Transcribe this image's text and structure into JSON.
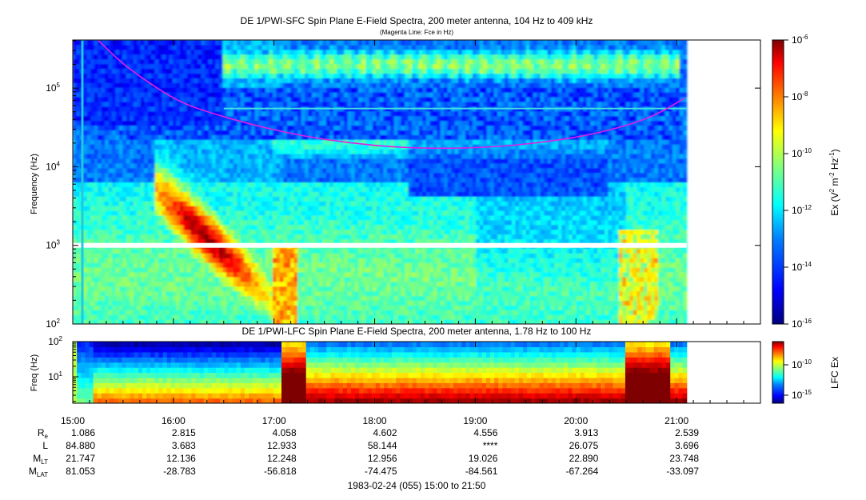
{
  "colors": {
    "fce_line": "#e020e0",
    "colormap": [
      "#00007f",
      "#0000ff",
      "#007fff",
      "#00ffff",
      "#7fff7f",
      "#ffff00",
      "#ff7f00",
      "#ff0000",
      "#7f0000"
    ]
  },
  "chart_data": [
    {
      "type": "heatmap",
      "title": "DE 1/PWI-SFC  Spin Plane E-Field Spectra, 200 meter antenna, 104 Hz to 409 kHz",
      "subtitle": "(Magenta Line: Fce in Hz)",
      "ylabel": "Frequency (Hz)",
      "yscale": "log",
      "ylim": [
        100,
        409000
      ],
      "yticks": [
        {
          "value": 100,
          "base": "10",
          "exp": "2"
        },
        {
          "value": 1000,
          "base": "10",
          "exp": "3"
        },
        {
          "value": 10000,
          "base": "10",
          "exp": "4"
        },
        {
          "value": 100000,
          "base": "10",
          "exp": "5"
        }
      ],
      "colorbar": {
        "label": "Ex (V",
        "label_parts": [
          "Ex (V",
          "2",
          " m",
          "-2",
          " Hz",
          "-1",
          ")"
        ],
        "scale": "log",
        "range": [
          1e-16,
          1e-06
        ],
        "ticks": [
          {
            "value": 1e-06,
            "base": "10",
            "exp": "-6"
          },
          {
            "value": 1e-08,
            "base": "10",
            "exp": "-8"
          },
          {
            "value": 1e-10,
            "base": "10",
            "exp": "-10"
          },
          {
            "value": 1e-12,
            "base": "10",
            "exp": "-12"
          },
          {
            "value": 1e-14,
            "base": "10",
            "exp": "-14"
          },
          {
            "value": 1e-16,
            "base": "10",
            "exp": "-16"
          }
        ]
      },
      "fce_line": {
        "name": "Fce in Hz",
        "points": [
          [
            "15:15",
            409000
          ],
          [
            "15:30",
            200000
          ],
          [
            "15:50",
            100000
          ],
          [
            "16:05",
            65000
          ],
          [
            "16:20",
            50000
          ],
          [
            "16:45",
            35000
          ],
          [
            "17:15",
            25000
          ],
          [
            "17:45",
            20000
          ],
          [
            "18:15",
            17500
          ],
          [
            "18:45",
            17000
          ],
          [
            "19:15",
            18000
          ],
          [
            "19:45",
            21000
          ],
          [
            "20:15",
            27000
          ],
          [
            "20:45",
            42000
          ],
          [
            "21:05",
            75000
          ]
        ]
      }
    },
    {
      "type": "heatmap",
      "title": "DE 1/PWI-LFC  Spin Plane E-Field Spectra, 200 meter antenna, 1.78 Hz to 100 Hz",
      "ylabel": "Freq (Hz)",
      "yscale": "log",
      "ylim": [
        1.78,
        100
      ],
      "yticks": [
        {
          "value": 10,
          "base": "10",
          "exp": "1"
        },
        {
          "value": 100,
          "base": "10",
          "exp": "2"
        }
      ],
      "colorbar": {
        "label": "LFC Ex",
        "scale": "log",
        "ticks": [
          {
            "value": 1e-10,
            "base": "10",
            "exp": "-10"
          },
          {
            "value": 1e-15,
            "base": "10",
            "exp": "-15"
          }
        ]
      }
    }
  ],
  "x_axis": {
    "range": [
      "15:00",
      "21:50"
    ],
    "ticks": [
      "15:00",
      "16:00",
      "17:00",
      "18:00",
      "19:00",
      "20:00",
      "21:00"
    ],
    "caption": "1983-02-24 (055) 15:00 to 21:50"
  },
  "ephemeris": [
    {
      "label": "R",
      "sub": "e",
      "values": [
        "1.086",
        "2.815",
        "4.058",
        "4.602",
        "4.556",
        "3.913",
        "2.539"
      ]
    },
    {
      "label": "L",
      "sub": "",
      "values": [
        "84.880",
        "3.683",
        "12.933",
        "58.144",
        "****",
        "26.075",
        "3.696"
      ]
    },
    {
      "label": "M",
      "sub": "LT",
      "values": [
        "21.747",
        "12.136",
        "12.248",
        "12.956",
        "19.026",
        "22.890",
        "23.748"
      ]
    },
    {
      "label": "M",
      "sub": "LAT",
      "values": [
        "81.053",
        "-28.783",
        "-56.818",
        "-74.475",
        "-84.561",
        "-67.264",
        "-33.097"
      ]
    }
  ]
}
